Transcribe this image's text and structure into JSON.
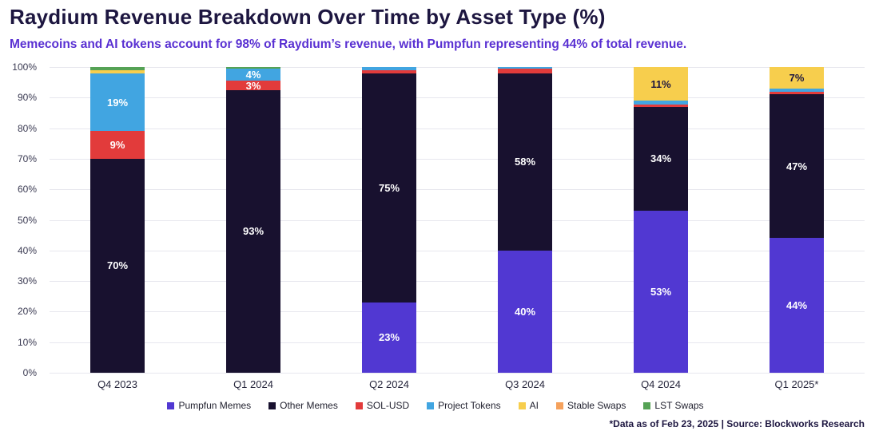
{
  "header": {
    "title": "Raydium Revenue Breakdown Over Time by Asset Type (%)",
    "subtitle": "Memecoins and AI tokens account for 98% of Raydium’s revenue, with Pumpfun representing 44% of total revenue."
  },
  "footer": {
    "note": "*Data as of Feb 23, 2025 | Source: Blockworks Research"
  },
  "colors": {
    "title": "#1d1640",
    "subtitle": "#5930d2",
    "gridline": "#e7e7ee",
    "axis_text": "#3a3a52",
    "pumpfun_memes": "#5138d2",
    "other_memes": "#18112f",
    "sol_usd": "#e23b3b",
    "project_tokens": "#41a5e1",
    "ai": "#f7ce4d",
    "stable_swaps": "#f5a15c",
    "lst_swaps": "#55a255"
  },
  "chart_data": {
    "type": "bar",
    "stacked": true,
    "title": "Raydium Revenue Breakdown Over Time by Asset Type (%)",
    "xlabel": "",
    "ylabel": "",
    "ylim": [
      0,
      100
    ],
    "grid": true,
    "legend_position": "bottom",
    "yticks": [
      "0%",
      "10%",
      "20%",
      "30%",
      "40%",
      "50%",
      "60%",
      "70%",
      "80%",
      "90%",
      "100%"
    ],
    "categories": [
      "Q4 2023",
      "Q1 2024",
      "Q2 2024",
      "Q3 2024",
      "Q4 2024",
      "Q1 2025*"
    ],
    "series": [
      {
        "name": "Pumpfun Memes",
        "color": "#5138d2",
        "label_color": "#ffffff",
        "values": [
          0,
          0,
          23,
          40,
          53,
          44
        ],
        "labels": [
          "",
          "",
          "23%",
          "40%",
          "53%",
          "44%"
        ]
      },
      {
        "name": "Other Memes",
        "color": "#18112f",
        "label_color": "#ffffff",
        "values": [
          70,
          92.5,
          75,
          58,
          34,
          47
        ],
        "labels": [
          "70%",
          "93%",
          "75%",
          "58%",
          "34%",
          "47%"
        ]
      },
      {
        "name": "SOL-USD",
        "color": "#e23b3b",
        "label_color": "#ffffff",
        "values": [
          9,
          3,
          1,
          1.5,
          0.7,
          1
        ],
        "labels": [
          "9%",
          "3%",
          "",
          "",
          "",
          ""
        ]
      },
      {
        "name": "Project Tokens",
        "color": "#41a5e1",
        "label_color": "#ffffff",
        "values": [
          19,
          4,
          1,
          0.5,
          1.3,
          1
        ],
        "labels": [
          "19%",
          "4%",
          "",
          "",
          "",
          ""
        ]
      },
      {
        "name": "AI",
        "color": "#f7ce4d",
        "label_color": "#1d1640",
        "values": [
          1,
          0,
          0,
          0,
          11,
          7
        ],
        "labels": [
          "",
          "",
          "",
          "",
          "11%",
          "7%"
        ]
      },
      {
        "name": "Stable Swaps",
        "color": "#f5a15c",
        "label_color": "#1d1640",
        "values": [
          0,
          0,
          0,
          0,
          0,
          0
        ],
        "labels": [
          "",
          "",
          "",
          "",
          "",
          ""
        ]
      },
      {
        "name": "LST Swaps",
        "color": "#55a255",
        "label_color": "#ffffff",
        "values": [
          1,
          0.5,
          0,
          0,
          0,
          0
        ],
        "labels": [
          "",
          "",
          "",
          "",
          "",
          ""
        ]
      }
    ]
  }
}
